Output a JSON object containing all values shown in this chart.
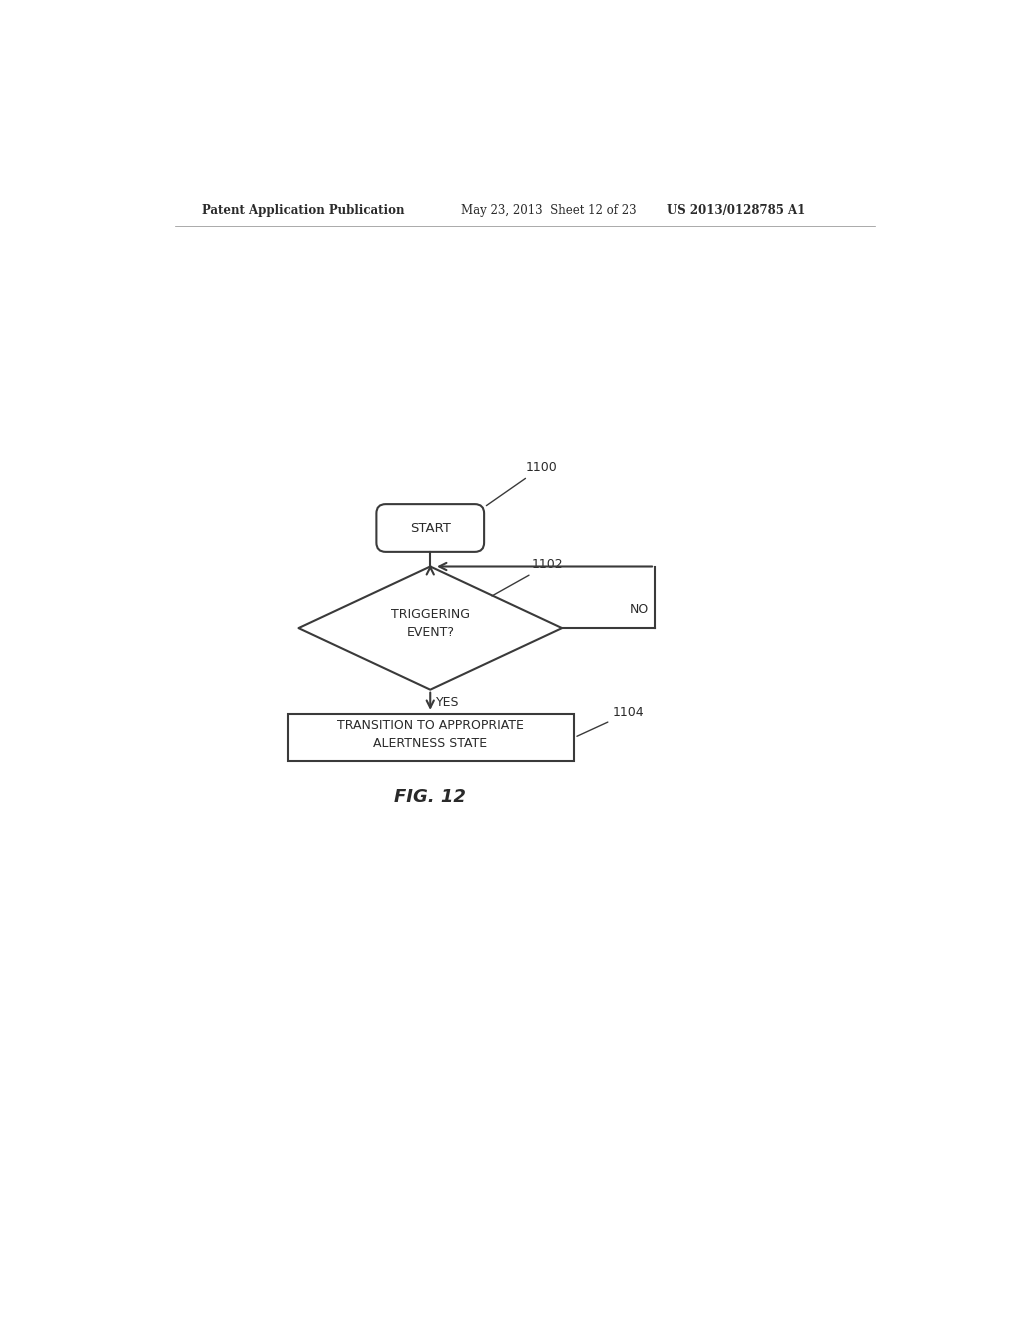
{
  "bg_color": "#ffffff",
  "header_left": "Patent Application Publication",
  "header_mid": "May 23, 2013  Sheet 12 of 23",
  "header_right": "US 2013/0128785 A1",
  "fig_label": "FIG. 12",
  "start_label": "START",
  "start_ref": "1100",
  "diamond_label": "TRIGGERING\nEVENT?",
  "diamond_ref": "1102",
  "no_label": "NO",
  "yes_label": "YES",
  "box_label": "TRANSITION TO APPROPRIATE\nALERTNESS STATE",
  "box_ref": "1104",
  "line_color": "#3a3a3a",
  "text_color": "#2a2a2a",
  "font_size_header": 8.5,
  "font_size_body": 8.5,
  "font_size_fig": 13
}
